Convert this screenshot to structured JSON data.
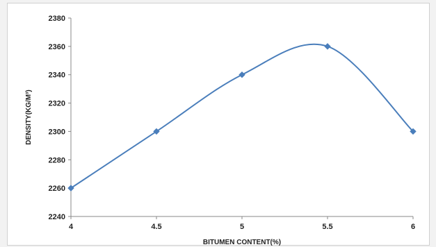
{
  "chart_data": {
    "type": "line",
    "smooth": true,
    "title": "",
    "xlabel": "BITUMEN CONTENT(%)",
    "ylabel": "DENSITY(KG/M³)",
    "x": [
      4,
      4.5,
      5,
      5.5,
      6
    ],
    "x_tick_labels": [
      "4",
      "4.5",
      "5",
      "5.5",
      "6"
    ],
    "series": [
      {
        "values": [
          2260,
          2300,
          2340,
          2360,
          2300
        ],
        "color": "#4a7ebb"
      }
    ],
    "xlim": [
      4,
      6
    ],
    "ylim": [
      2240,
      2380
    ],
    "y_ticks": [
      2240,
      2260,
      2280,
      2300,
      2320,
      2340,
      2360,
      2380
    ],
    "grid": false,
    "legend": "none"
  }
}
